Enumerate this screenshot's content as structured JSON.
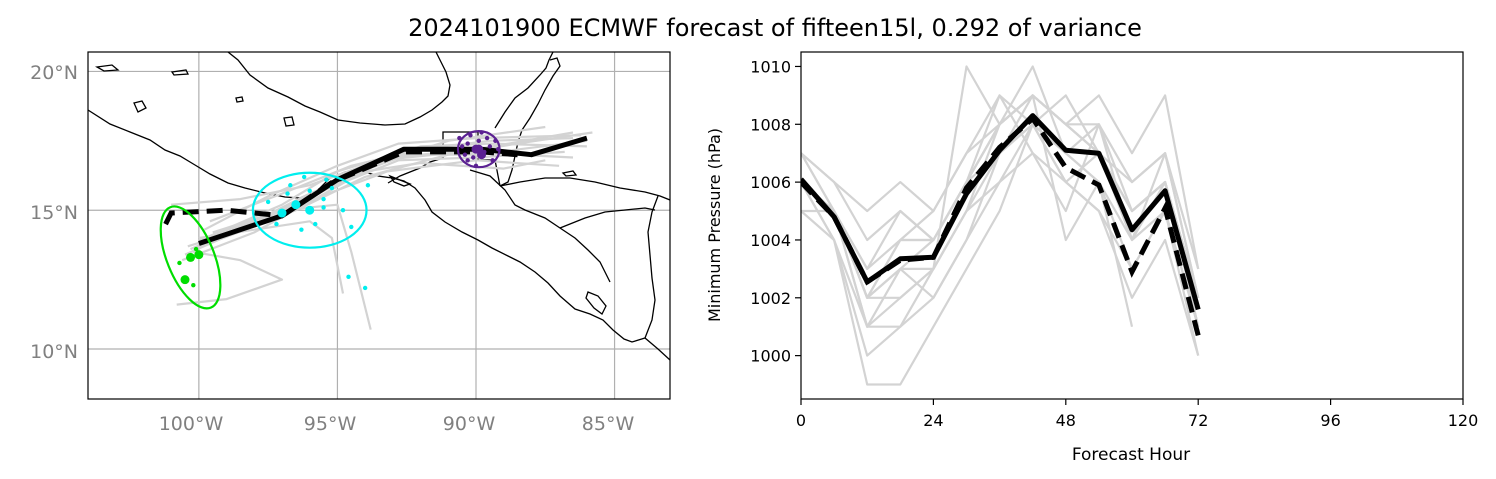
{
  "figure": {
    "title": "2024101900 ECMWF forecast of fifteen15l, 0.292 of variance"
  },
  "colors": {
    "ensemble": "#d3d3d3",
    "mean": "#000000",
    "cluster_green": "#00dd00",
    "cluster_cyan": "#00eeee",
    "cluster_purple": "#5b2192",
    "grid": "#b0b0b0",
    "map_tick_text": "#808080"
  },
  "chart_data": [
    {
      "type": "map",
      "name": "track-map",
      "lon_range": [
        -104,
        -83
      ],
      "lat_range": [
        8.2,
        20.7
      ],
      "lon_ticks": [
        -100,
        -95,
        -90,
        -85
      ],
      "lon_tick_labels": [
        "100°W",
        "95°W",
        "90°W",
        "85°W"
      ],
      "lat_ticks": [
        10,
        15,
        20
      ],
      "lat_tick_labels": [
        "10°N",
        "15°N",
        "20°N"
      ],
      "mean_track": [
        [
          -100,
          13.8
        ],
        [
          -97,
          14.8
        ],
        [
          -95,
          16.1
        ],
        [
          -92.6,
          17.2
        ],
        [
          -89.8,
          17.2
        ],
        [
          -88,
          17.0
        ],
        [
          -86,
          17.6
        ]
      ],
      "mean_track_dashed": [
        [
          -101.2,
          14.5
        ],
        [
          -101,
          14.9
        ],
        [
          -99,
          15.0
        ],
        [
          -97,
          14.8
        ],
        [
          -95.2,
          16.0
        ],
        [
          -92.6,
          17.1
        ],
        [
          -89.8,
          17.1
        ],
        [
          -88.5,
          17.0
        ]
      ],
      "ensemble_tracks": [
        [
          [
            -100.2,
            13.6
          ],
          [
            -97.5,
            14.6
          ],
          [
            -95.2,
            16.0
          ],
          [
            -92.5,
            17.0
          ],
          [
            -90,
            17.0
          ],
          [
            -86,
            17.5
          ]
        ],
        [
          [
            -100.5,
            13.4
          ],
          [
            -98,
            14.5
          ],
          [
            -95.5,
            15.8
          ],
          [
            -93,
            16.9
          ],
          [
            -90,
            17.2
          ],
          [
            -86.5,
            17.8
          ]
        ],
        [
          [
            -100,
            13.9
          ],
          [
            -97,
            15.2
          ],
          [
            -95,
            16.4
          ],
          [
            -92,
            17.3
          ],
          [
            -89.5,
            17.4
          ],
          [
            -86,
            17.3
          ]
        ],
        [
          [
            -101,
            15.2
          ],
          [
            -98.5,
            15.4
          ],
          [
            -96,
            15.9
          ],
          [
            -93.5,
            16.8
          ],
          [
            -90.5,
            17.1
          ],
          [
            -86.5,
            16.9
          ]
        ],
        [
          [
            -99.8,
            14.0
          ],
          [
            -97.2,
            14.9
          ],
          [
            -95.6,
            15.5
          ],
          [
            -93.2,
            16.4
          ],
          [
            -90,
            16.8
          ],
          [
            -87,
            16.6
          ]
        ],
        [
          [
            -100.6,
            13.2
          ],
          [
            -98,
            14.2
          ],
          [
            -96,
            15.3
          ],
          [
            -93.5,
            16.7
          ],
          [
            -91,
            17.5
          ],
          [
            -87.5,
            18.0
          ]
        ],
        [
          [
            -99.5,
            14.2
          ],
          [
            -97,
            15.0
          ],
          [
            -95,
            15.2
          ],
          [
            -94.5,
            13.5
          ],
          [
            -93.8,
            10.7
          ]
        ],
        [
          [
            -100,
            14.0
          ],
          [
            -98,
            14.3
          ],
          [
            -96,
            14.6
          ],
          [
            -95.2,
            14.0
          ],
          [
            -94.8,
            12.0
          ]
        ],
        [
          [
            -100.2,
            13.5
          ],
          [
            -98.5,
            13.2
          ],
          [
            -97,
            12.5
          ],
          [
            -99,
            11.8
          ],
          [
            -100.8,
            11.6
          ]
        ],
        [
          [
            -99.8,
            14.3
          ],
          [
            -97.5,
            15.5
          ],
          [
            -95,
            16.6
          ],
          [
            -92.8,
            17.4
          ],
          [
            -90,
            17.6
          ],
          [
            -86.2,
            17.7
          ]
        ],
        [
          [
            -100.4,
            13.7
          ],
          [
            -97.8,
            14.5
          ],
          [
            -95.3,
            15.8
          ],
          [
            -92.8,
            16.8
          ],
          [
            -90,
            16.9
          ],
          [
            -86.8,
            17.1
          ]
        ],
        [
          [
            -100,
            13.8
          ],
          [
            -96.5,
            15.0
          ],
          [
            -94,
            16.2
          ],
          [
            -91,
            17.0
          ],
          [
            -88.5,
            17.4
          ],
          [
            -85.8,
            17.8
          ]
        ],
        [
          [
            -100.3,
            13.6
          ],
          [
            -98,
            14.6
          ],
          [
            -96,
            15.6
          ],
          [
            -94,
            16.4
          ],
          [
            -92,
            16.7
          ],
          [
            -89,
            16.5
          ],
          [
            -87.5,
            16.8
          ]
        ],
        [
          [
            -99.6,
            14.6
          ],
          [
            -97,
            15.6
          ],
          [
            -94.5,
            16.6
          ],
          [
            -92,
            17.2
          ],
          [
            -89.5,
            17.5
          ],
          [
            -86.5,
            17.6
          ]
        ]
      ],
      "clusters": [
        {
          "name": "green",
          "center": [
            -100.3,
            13.3
          ],
          "rx_deg": 0.85,
          "ry_deg": 1.95,
          "angle_deg": -22,
          "points": [
            [
              -100.5,
              12.5
            ],
            [
              -100,
              13.4
            ],
            [
              -100.7,
              13.1
            ],
            [
              -100.2,
              12.3
            ],
            [
              -100.1,
              13.6
            ]
          ]
        },
        {
          "name": "cyan",
          "center": [
            -96,
            15.0
          ],
          "rx_deg": 2.05,
          "ry_deg": 1.35,
          "angle_deg": 0,
          "points": [
            [
              -96.5,
              15.2
            ],
            [
              -97,
              14.9
            ],
            [
              -96,
              15.0
            ],
            [
              -95.5,
              15.4
            ],
            [
              -96.8,
              15.6
            ],
            [
              -95.8,
              14.5
            ],
            [
              -96.2,
              16.2
            ],
            [
              -95.2,
              15.8
            ],
            [
              -97.5,
              15.3
            ],
            [
              -94.5,
              14.4
            ],
            [
              -95.5,
              15.1
            ],
            [
              -96.3,
              14.3
            ],
            [
              -94.6,
              12.6
            ],
            [
              -94,
              12.2
            ],
            [
              -96.7,
              15.9
            ],
            [
              -95.4,
              16.1
            ],
            [
              -97.2,
              14.5
            ],
            [
              -96,
              15.7
            ],
            [
              -94.8,
              15.0
            ],
            [
              -93.9,
              15.9
            ]
          ]
        },
        {
          "name": "purple",
          "center": [
            -89.9,
            17.2
          ],
          "rx_deg": 0.75,
          "ry_deg": 0.65,
          "angle_deg": 0,
          "points": [
            [
              -90,
              17.2
            ],
            [
              -89.8,
              17.0
            ],
            [
              -90.3,
              17.4
            ],
            [
              -89.5,
              17.3
            ],
            [
              -90.1,
              16.9
            ],
            [
              -89.6,
              17.6
            ],
            [
              -90.4,
              17.0
            ],
            [
              -89.9,
              17.5
            ],
            [
              -89.4,
              16.8
            ],
            [
              -90.2,
              17.7
            ],
            [
              -89.7,
              17.1
            ],
            [
              -90.5,
              17.3
            ],
            [
              -89.3,
              17.5
            ],
            [
              -90.0,
              16.6
            ],
            [
              -89.2,
              17.2
            ],
            [
              -90.6,
              17.6
            ],
            [
              -89.8,
              17.8
            ],
            [
              -90.3,
              16.8
            ]
          ]
        }
      ]
    },
    {
      "type": "line",
      "name": "pressure-chart",
      "title": "",
      "xlabel": "Forecast Hour",
      "ylabel": "Minimum Pressure (hPa)",
      "xlim": [
        0,
        120
      ],
      "ylim": [
        998.5,
        1010.5
      ],
      "x_ticks": [
        0,
        24,
        48,
        72,
        96,
        120
      ],
      "x_tick_labels": [
        "0",
        "24",
        "48",
        "72",
        "96",
        "120"
      ],
      "y_ticks": [
        1000,
        1002,
        1004,
        1006,
        1008,
        1010
      ],
      "y_tick_labels": [
        "1000",
        "1002",
        "1004",
        "1006",
        "1008",
        "1010"
      ],
      "x": [
        0,
        6,
        12,
        18,
        24,
        30,
        36,
        42,
        48,
        54,
        60,
        66,
        72
      ],
      "mean_series": [
        1006.1,
        1004.8,
        1002.55,
        1003.35,
        1003.4,
        1005.6,
        1007.1,
        1008.3,
        1007.1,
        1007.0,
        1004.35,
        1005.7,
        1001.6
      ],
      "mean_series_dashed": [
        1006.0,
        1004.8,
        1002.55,
        1003.3,
        1003.4,
        1005.8,
        1007.2,
        1008.2,
        1006.5,
        1005.9,
        1002.9,
        1005.1,
        1000.7
      ],
      "ensemble_series": [
        [
          1007,
          1005,
          1003,
          1004,
          1004,
          1006,
          1008,
          1009,
          1008,
          1007,
          1005,
          1006,
          1002
        ],
        [
          1006,
          1005,
          1002,
          1003,
          1003,
          1005,
          1007,
          1008,
          1007,
          1006,
          1003,
          1005,
          1001
        ],
        [
          1006,
          1004,
          1001,
          1002,
          1003,
          1010,
          1008,
          1009,
          1008,
          1009,
          1007,
          1009,
          1003
        ],
        [
          1005,
          1005,
          1001,
          1001,
          1002,
          1004,
          1006,
          1008,
          1006,
          1007,
          1004,
          1006,
          1002
        ],
        [
          1007,
          1006,
          1004,
          1005,
          1004,
          1006,
          1009,
          1007,
          1005,
          1008,
          1004,
          1007,
          1002
        ],
        [
          1006,
          1004,
          999,
          999,
          1001,
          1003,
          1005,
          1008,
          1006,
          1005,
          1002,
          1004,
          1000
        ],
        [
          1006,
          1005,
          1002,
          1004,
          1005,
          1007,
          1009,
          1008,
          1009,
          1007,
          1006,
          1007,
          1003
        ],
        [
          1007,
          1005,
          1003,
          1005,
          1004,
          1006,
          1007,
          1009,
          1004,
          1006,
          1001
        ],
        [
          1005,
          1004,
          1000,
          1001,
          1003,
          1005,
          1008,
          1010,
          1007,
          1008,
          1005,
          1006,
          1001
        ],
        [
          1006,
          1005,
          1002,
          1003,
          1002,
          1004,
          1007,
          1008,
          1007,
          1006,
          1004,
          1005,
          1000
        ],
        [
          1006,
          1005,
          1001,
          1003,
          1004,
          1006,
          1008,
          1009,
          1008,
          1007,
          1005,
          1006,
          1002
        ],
        [
          1007,
          1006,
          1005,
          1006,
          1005,
          1007,
          1008,
          1009,
          1008,
          1008,
          1006,
          1007,
          1002
        ],
        [
          1006,
          1005,
          1002,
          1002,
          1003,
          1005,
          1006,
          1007,
          1006,
          1005,
          1003,
          1005,
          1001
        ],
        [
          1006,
          1005,
          1002,
          1004,
          1004,
          1006,
          1008,
          1009,
          1008,
          1007,
          1005,
          1006,
          1001
        ]
      ]
    }
  ]
}
